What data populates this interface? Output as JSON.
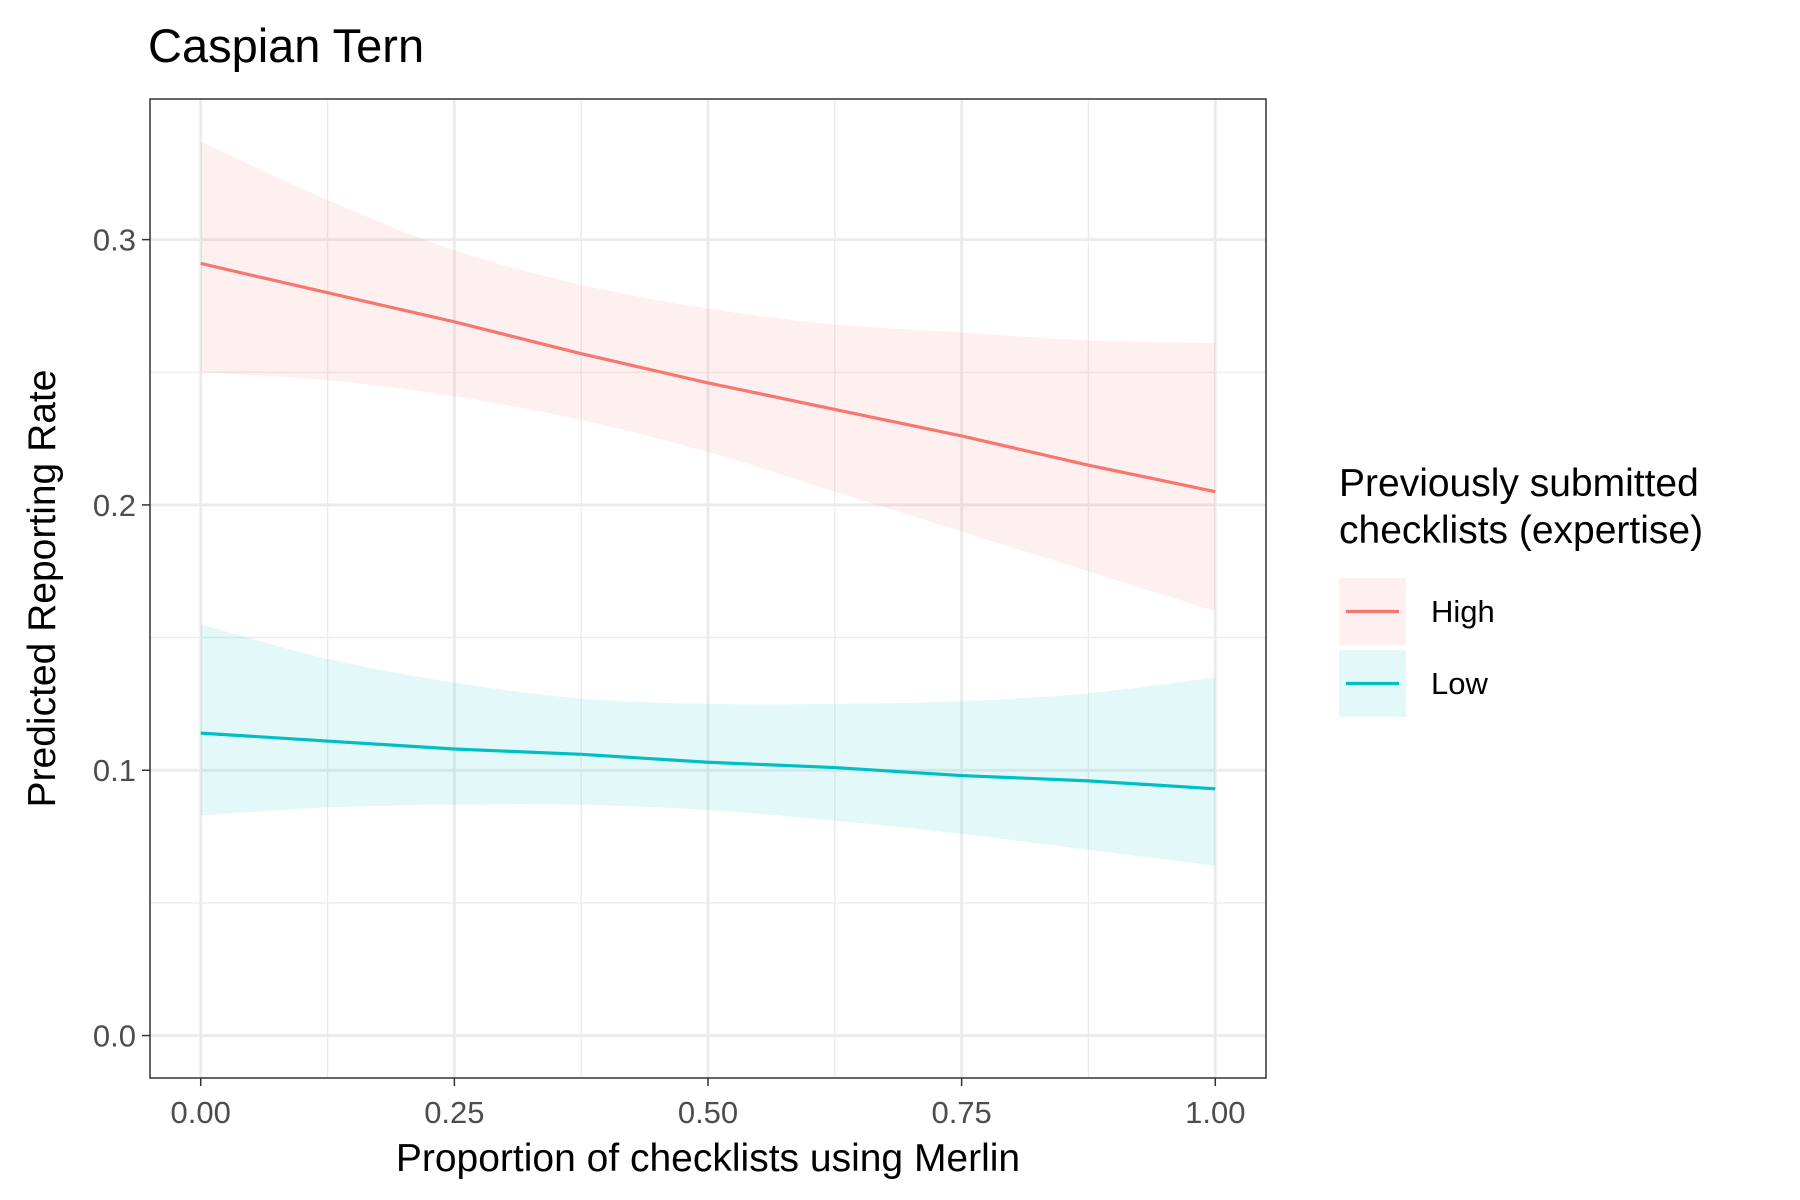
{
  "chart_data": {
    "type": "line",
    "title": "Caspian Tern",
    "xlabel": "Proportion of checklists using Merlin",
    "ylabel": "Predicted Reporting Rate",
    "xlim": [
      -0.05,
      1.05
    ],
    "ylim": [
      -0.016,
      0.353
    ],
    "x_ticks": [
      0,
      0.25,
      0.5,
      0.75,
      1
    ],
    "x_tick_labels": [
      "0.00",
      "0.25",
      "0.50",
      "0.75",
      "1.00"
    ],
    "y_ticks": [
      0,
      0.1,
      0.2,
      0.3
    ],
    "y_tick_labels": [
      "0.0",
      "0.1",
      "0.2",
      "0.3"
    ],
    "grid": true,
    "legend": {
      "title_lines": [
        "Previously submitted",
        "checklists (expertise)"
      ],
      "placement": "right"
    },
    "x": [
      0,
      0.125,
      0.25,
      0.375,
      0.5,
      0.625,
      0.75,
      0.875,
      1
    ],
    "series": [
      {
        "name": "High",
        "color": "#f8766d",
        "band_color": "#f8766d",
        "y": [
          0.291,
          0.28,
          0.269,
          0.257,
          0.246,
          0.236,
          0.226,
          0.215,
          0.205
        ],
        "lower": [
          0.25,
          0.247,
          0.241,
          0.232,
          0.22,
          0.205,
          0.19,
          0.175,
          0.16
        ],
        "upper": [
          0.337,
          0.315,
          0.296,
          0.283,
          0.274,
          0.268,
          0.265,
          0.262,
          0.261
        ]
      },
      {
        "name": "Low",
        "color": "#00bfc4",
        "band_color": "#00bfc4",
        "y": [
          0.114,
          0.111,
          0.108,
          0.106,
          0.103,
          0.101,
          0.098,
          0.096,
          0.093
        ],
        "lower": [
          0.083,
          0.086,
          0.087,
          0.087,
          0.085,
          0.081,
          0.076,
          0.07,
          0.064
        ],
        "upper": [
          0.155,
          0.142,
          0.133,
          0.127,
          0.125,
          0.125,
          0.126,
          0.129,
          0.135
        ]
      }
    ]
  }
}
